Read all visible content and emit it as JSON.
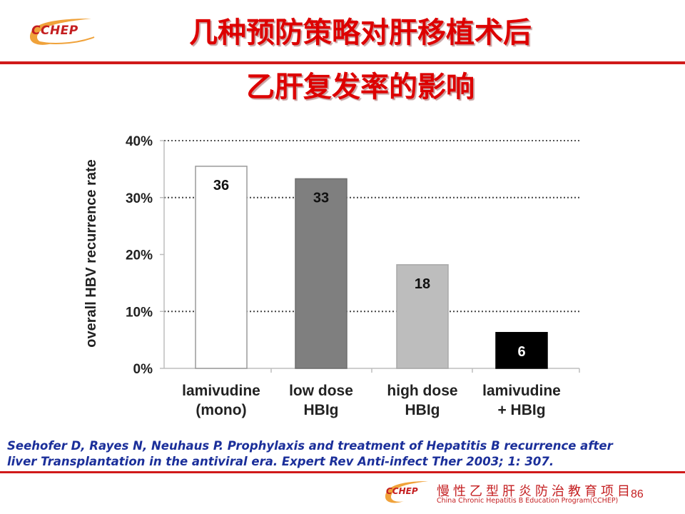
{
  "header": {
    "logo_text": "CCHEP",
    "title_line1": "几种预防策略对肝移植术后",
    "title_line2": "乙肝复发率的影响"
  },
  "chart_data": {
    "type": "bar",
    "title": "",
    "xlabel": "",
    "ylabel": "overall HBV recurrence rate",
    "ylim": [
      0,
      40
    ],
    "y_ticks": [
      "0%",
      "10%",
      "20%",
      "30%",
      "40%"
    ],
    "grid": "horizontal dotted at 10% and 30%",
    "categories": [
      {
        "line1": "lamivudine",
        "line2": "(mono)"
      },
      {
        "line1": "low dose",
        "line2": "HBIg"
      },
      {
        "line1": "high dose",
        "line2": "HBIg"
      },
      {
        "line1": "lamivudine",
        "line2": "+ HBIg"
      }
    ],
    "values": [
      35.5,
      33.3,
      18.2,
      6.3
    ],
    "data_labels": [
      "36",
      "33",
      "18",
      "6"
    ],
    "colors": {
      "bar_fills": [
        "#ffffff",
        "#7f7f7f",
        "#bdbdbd",
        "#000000"
      ],
      "bar_strokes": [
        "#9a9a9a",
        "#6f6f6f",
        "#a8a8a8",
        "#000000"
      ],
      "label_colors": [
        "#111111",
        "#111111",
        "#111111",
        "#ffffff"
      ]
    }
  },
  "citation": {
    "line1": "Seehofer D, Rayes N, Neuhaus P. Prophylaxis and treatment of Hepatitis B recurrence after",
    "line2": "liver Transplantation in the antiviral era. Expert Rev Anti-infect Ther 2003; 1: 307."
  },
  "footer": {
    "logo_text": "CCHEP",
    "org_cn": "慢性乙型肝炎防治教育项目",
    "org_en": "China Chronic Hepatitis B Education Program(CCHEP)",
    "page_number": "86"
  },
  "theme": {
    "accent": "#d01a1a",
    "title_color": "#dd0000",
    "citation_color": "#1b2f9a"
  }
}
